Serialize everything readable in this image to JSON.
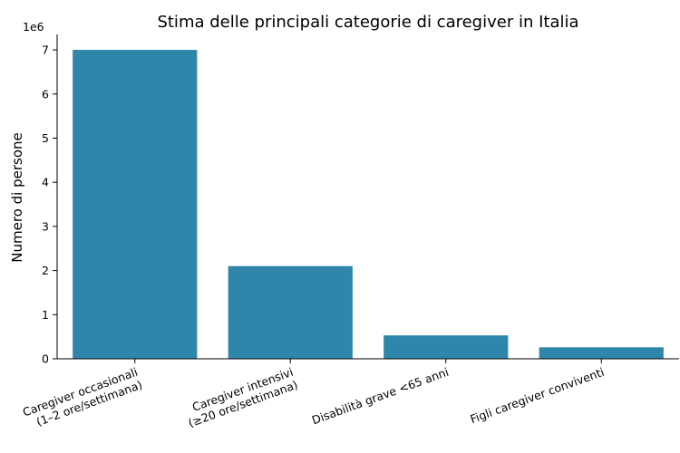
{
  "chart_data": {
    "type": "bar",
    "title": "Stima delle principali categorie di caregiver in Italia",
    "xlabel": "",
    "ylabel": "Numero di persone",
    "y_offset_label": "1e6",
    "y_tick_values": [
      0,
      1,
      2,
      3,
      4,
      5,
      6,
      7
    ],
    "y_tick_labels": [
      "0",
      "1",
      "2",
      "3",
      "4",
      "5",
      "6",
      "7"
    ],
    "ylim": [
      0,
      7350000
    ],
    "grid": false,
    "categories": [
      [
        "Caregiver occasionali",
        "(1–2 ore/settimana)"
      ],
      [
        "Caregiver intensivi",
        "(≥20 ore/settimana)"
      ],
      [
        "Disabilità grave <65 anni"
      ],
      [
        "Figli caregiver conviventi"
      ]
    ],
    "values": [
      7000000,
      2100000,
      530000,
      260000
    ],
    "bar_color": "#2e86ab"
  }
}
